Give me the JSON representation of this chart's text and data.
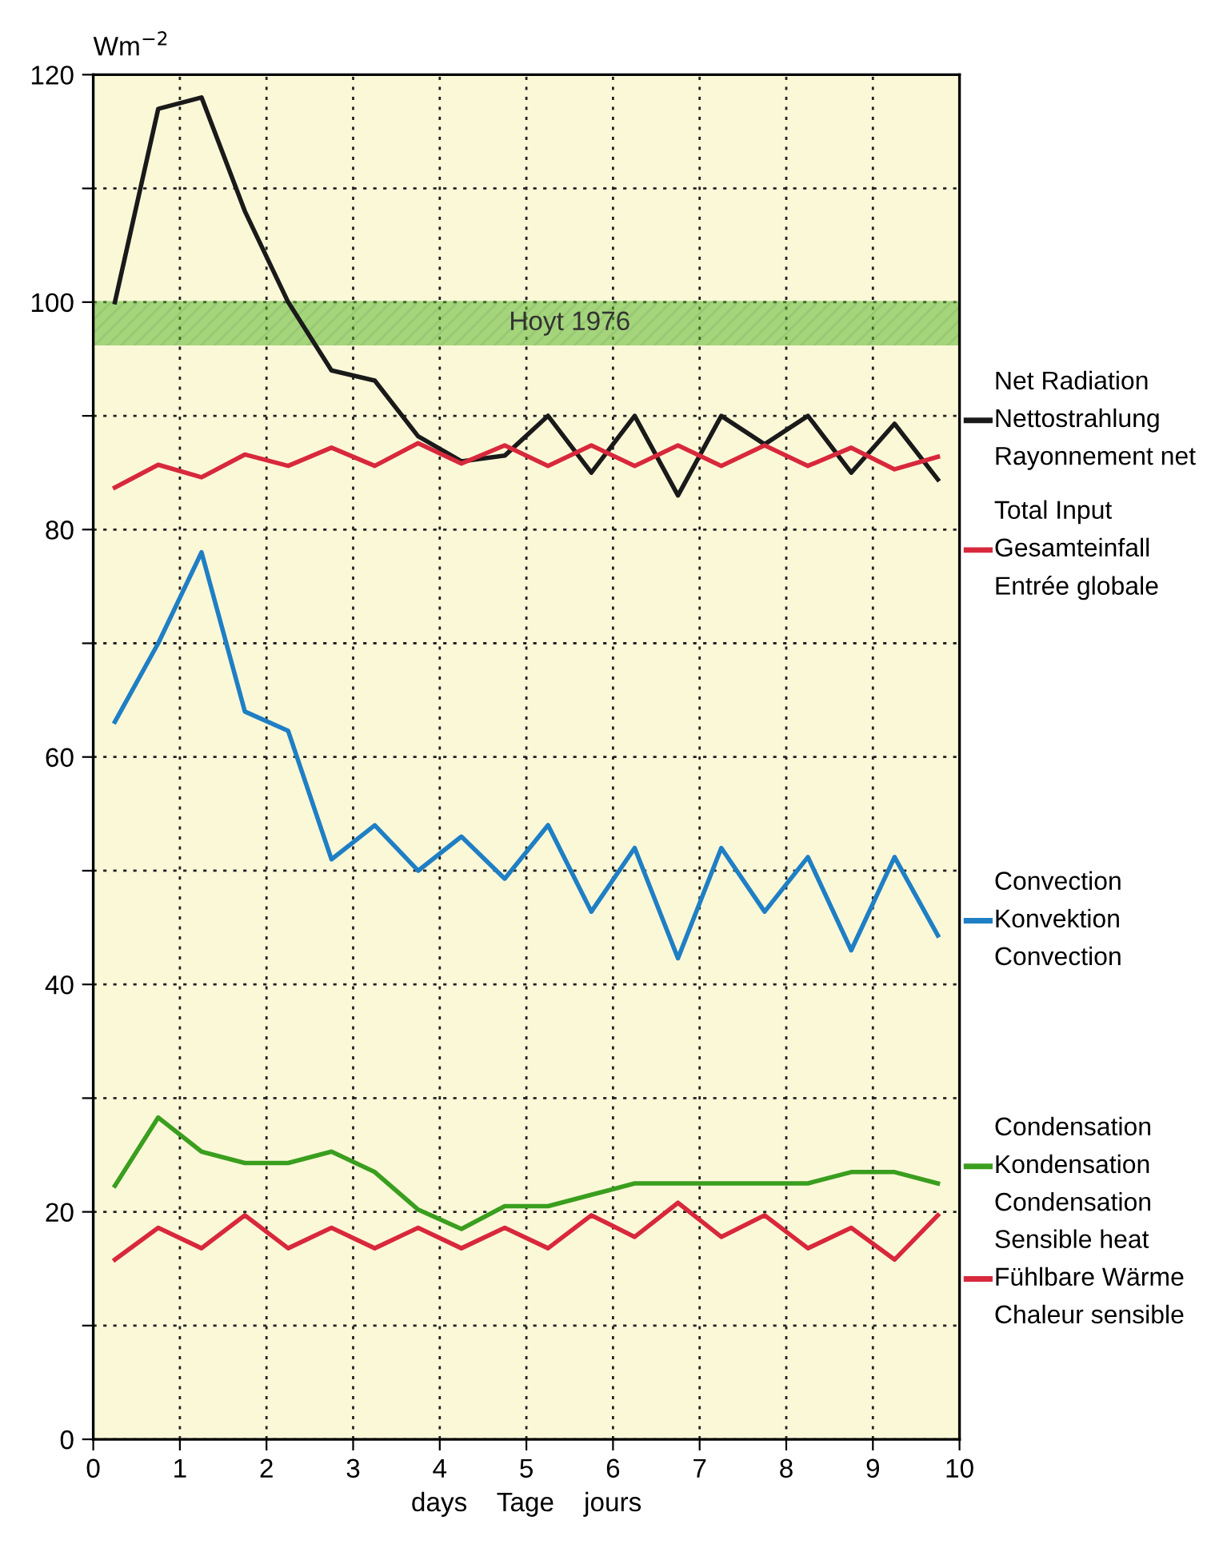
{
  "chart_data": {
    "type": "line",
    "xlabel": "days    Tage    jours",
    "ylabel": "Wm$^{−2}$",
    "x": [
      0.25,
      0.75,
      1.25,
      1.75,
      2.25,
      2.75,
      3.25,
      3.75,
      4.25,
      4.75,
      5.25,
      5.75,
      6.25,
      6.75,
      7.25,
      7.75,
      8.25,
      8.75,
      9.25,
      9.75
    ],
    "series": [
      {
        "name": "Net Radiation\nNettostrahlung\nRayonnement net",
        "color": "#1a1a1a",
        "values": [
          100,
          117,
          118,
          108,
          100,
          94,
          93.1,
          88.2,
          86,
          86.5,
          90,
          85,
          90,
          83,
          90,
          87.5,
          90,
          85,
          89.3,
          84.4
        ]
      },
      {
        "name": "Total Input\nGesamteinfall\nEntrée globale",
        "color": "#d8283c",
        "values": [
          83.7,
          85.7,
          84.6,
          86.6,
          85.6,
          87.2,
          85.6,
          87.6,
          85.8,
          87.4,
          85.6,
          87.4,
          85.6,
          87.4,
          85.6,
          87.4,
          85.6,
          87.2,
          85.3,
          86.4
        ]
      },
      {
        "name": "Convection\nKonvektion\nConvection",
        "color": "#1f7fc4",
        "values": [
          63.1,
          70,
          78,
          64,
          62.3,
          51,
          54,
          50,
          53,
          49.3,
          54,
          46.4,
          52,
          42.3,
          52,
          46.4,
          51.2,
          43,
          51.2,
          44.3
        ]
      },
      {
        "name": "Condensation\nKondensation\nCondensation",
        "color": "#3a9e1e",
        "values": [
          22.3,
          28.3,
          25.3,
          24.3,
          24.3,
          25.3,
          23.5,
          20.2,
          18.5,
          20.5,
          20.5,
          21.5,
          22.5,
          22.5,
          22.5,
          22.5,
          22.5,
          23.5,
          23.5,
          22.5
        ]
      },
      {
        "name": "Sensible heat\nFühlbare Wärme\nChaleur sensible",
        "color": "#d8283c",
        "values": [
          15.8,
          18.6,
          16.8,
          19.7,
          16.8,
          18.6,
          16.8,
          18.6,
          16.8,
          18.6,
          16.8,
          19.7,
          17.8,
          20.8,
          17.8,
          19.7,
          16.8,
          18.6,
          15.8,
          19.7
        ]
      }
    ],
    "bands": [
      {
        "axis": "y",
        "from": 96.2,
        "to": 100.1,
        "label": "Hoyt 1976",
        "color": "#5cb82e"
      }
    ],
    "xlim": [
      0,
      10
    ],
    "xticks": [
      0,
      1,
      2,
      3,
      4,
      5,
      6,
      7,
      8,
      9,
      10
    ],
    "ylim": [
      0,
      120
    ],
    "yticks": [
      0,
      {
        "value": 10,
        "label": null
      },
      20,
      {
        "value": 30,
        "label": null
      },
      40,
      {
        "value": 50,
        "label": null
      },
      60,
      {
        "value": 70,
        "label": null
      },
      80,
      {
        "value": 90,
        "label": null
      },
      100,
      {
        "value": 110,
        "label": null
      },
      120
    ],
    "grid": true,
    "legend": "right",
    "marker": "none",
    "line_style": "solid"
  }
}
